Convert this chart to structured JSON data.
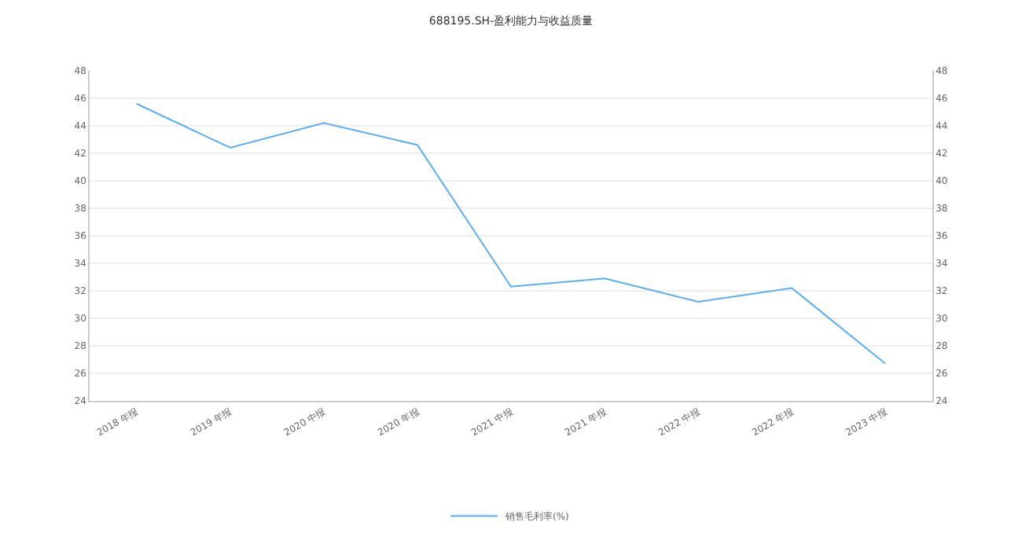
{
  "chart_data": {
    "type": "line",
    "title": "688195.SH-盈利能力与收益质量",
    "categories": [
      "2018 年报",
      "2019 年报",
      "2020 中报",
      "2020 年报",
      "2021 中报",
      "2021 年报",
      "2022 中报",
      "2022 年报",
      "2023 中报"
    ],
    "series": [
      {
        "name": "销售毛利率(%)",
        "color": "#5aaef7",
        "values": [
          45.6,
          42.4,
          44.2,
          42.6,
          32.3,
          32.9,
          31.2,
          32.2,
          26.7
        ]
      }
    ],
    "ylim": [
      24,
      48
    ],
    "yticks": [
      24,
      26,
      28,
      30,
      32,
      34,
      36,
      38,
      40,
      42,
      44,
      46,
      48
    ],
    "y2lim": [
      24,
      48
    ],
    "y2ticks": [
      24,
      26,
      28,
      30,
      32,
      34,
      36,
      38,
      40,
      42,
      44,
      46,
      48
    ],
    "grid": "y",
    "legend": "bottom",
    "line_style": "solid"
  }
}
